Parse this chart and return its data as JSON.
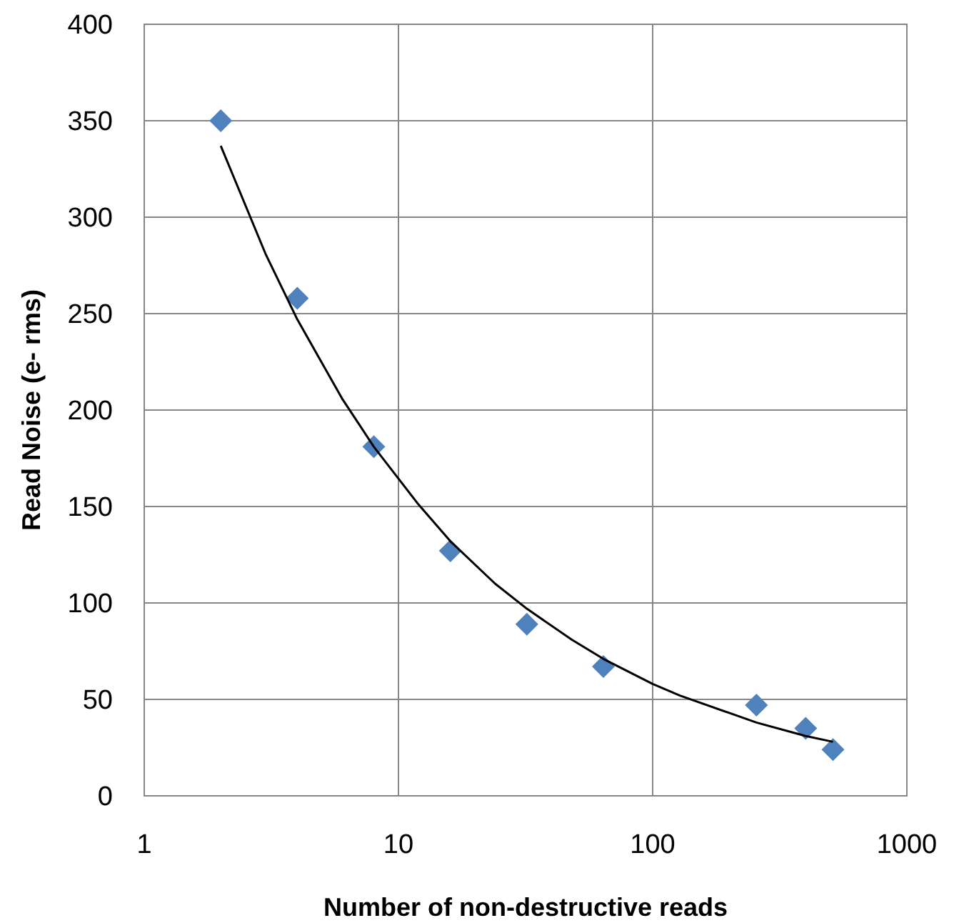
{
  "chart_data": {
    "type": "scatter",
    "xlabel": "Number of non-destructive reads",
    "ylabel": "Read Noise (e- rms)",
    "log": "x",
    "xlim": [
      1,
      1000
    ],
    "xticks": [
      1,
      10,
      100,
      1000
    ],
    "ylim": [
      0,
      400
    ],
    "yticks": [
      0,
      50,
      100,
      150,
      200,
      250,
      300,
      350,
      400
    ],
    "grid": true,
    "series": [
      {
        "marker": "diamond",
        "color": "#4f81bd",
        "x": [
          2,
          4,
          8,
          16,
          32,
          64,
          256,
          400,
          512
        ],
        "values": [
          350,
          258,
          181,
          127,
          89,
          67,
          47,
          35,
          24
        ]
      },
      {
        "type": "line",
        "marker": "none",
        "line_style": "solid",
        "color": "#000000",
        "x": [
          2,
          3,
          4,
          6,
          8,
          12,
          16,
          24,
          32,
          48,
          64,
          100,
          128,
          200,
          256,
          400,
          512
        ],
        "values": [
          337,
          281,
          247,
          206,
          181,
          151,
          132,
          110,
          97,
          81,
          71,
          58,
          52,
          43,
          38,
          31,
          28
        ]
      }
    ]
  }
}
